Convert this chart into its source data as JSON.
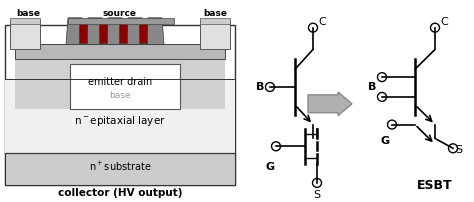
{
  "bg_color": "#ffffff",
  "cross_section": {
    "labels": {
      "base_left": "base",
      "source": "source",
      "base_right": "base",
      "emitter_drain": "emitter drain",
      "base_center": "base",
      "n_epi": "n⁻ epitaxial layer",
      "n_plus_sub": "n⁺substrate",
      "collector": "collector (HV output)"
    }
  },
  "arrow_color": "#aaaaaa",
  "circuit_left": {
    "B": "B",
    "G": "G",
    "C": "C",
    "S": "S"
  },
  "circuit_right": {
    "B": "B",
    "G": "G",
    "C": "C",
    "S": "S",
    "ESBT": "ESBT"
  }
}
